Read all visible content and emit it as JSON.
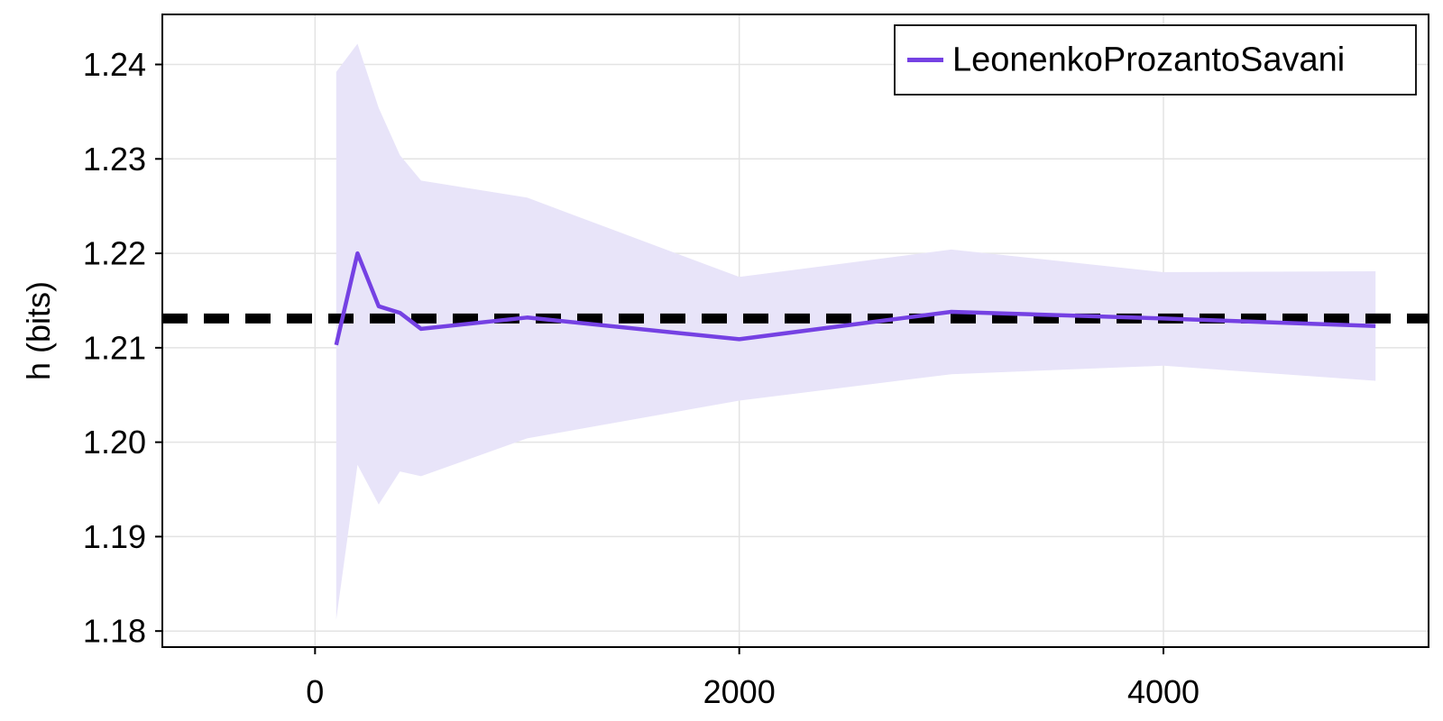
{
  "chart_data": {
    "type": "line",
    "title": "",
    "xlabel": "",
    "ylabel": "h (bits)",
    "xlim": [
      -720,
      5250
    ],
    "ylim": [
      1.1783,
      1.2453
    ],
    "xticks": [
      0,
      2000,
      4000
    ],
    "xtick_labels": [
      "0",
      "2000",
      "4000"
    ],
    "yticks": [
      1.18,
      1.19,
      1.2,
      1.21,
      1.22,
      1.23,
      1.24
    ],
    "ytick_labels": [
      "1.18",
      "1.19",
      "1.20",
      "1.21",
      "1.22",
      "1.23",
      "1.24"
    ],
    "grid": true,
    "legend_position": "top-right",
    "reference_line": {
      "y": 1.2131,
      "style": "dashed",
      "color": "#000000"
    },
    "series": [
      {
        "name": "LeonenkoProzantoSavani",
        "color": "#7541e3",
        "band_color": "#e8e4f9",
        "x": [
          100,
          200,
          300,
          400,
          500,
          1000,
          2000,
          3000,
          4000,
          5000
        ],
        "y": [
          1.2103,
          1.22,
          1.2144,
          1.2137,
          1.212,
          1.2132,
          1.2109,
          1.2138,
          1.2131,
          1.2123
        ],
        "upper": [
          1.2392,
          1.2422,
          1.2354,
          1.2304,
          1.2277,
          1.2259,
          1.2175,
          1.2204,
          1.218,
          1.2181
        ],
        "lower": [
          1.1812,
          1.1976,
          1.1934,
          1.1969,
          1.1964,
          1.2004,
          1.2044,
          1.2072,
          1.2081,
          1.2065
        ]
      }
    ]
  }
}
